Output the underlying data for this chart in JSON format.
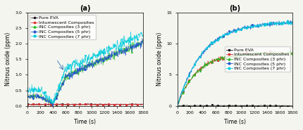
{
  "panel_a": {
    "title": "(a)",
    "xlabel": "Time (s)",
    "ylabel": "Nitrous oxide (ppm)",
    "ylim": [
      0,
      3.0
    ],
    "xlim": [
      0,
      1800
    ],
    "yticks": [
      0.0,
      0.5,
      1.0,
      1.5,
      2.0,
      2.5,
      3.0
    ],
    "xticks": [
      0,
      200,
      400,
      600,
      800,
      1000,
      1200,
      1400,
      1600,
      1800
    ],
    "series": {
      "Pure EVA": {
        "color": "#1a1a1a",
        "marker": "s",
        "style": "flat"
      },
      "Intumescent Composites": {
        "color": "#e03030",
        "marker": "s",
        "style": "flat"
      },
      "INC Composites (3 phr)": {
        "color": "#22bb22",
        "marker": "^",
        "style": "rise"
      },
      "INC Composites (5 phr)": {
        "color": "#2255cc",
        "marker": "o",
        "style": "rise"
      },
      "INC Composites (7 phr)": {
        "color": "#00ccdd",
        "marker": "o",
        "style": "rise_fast"
      }
    }
  },
  "panel_b": {
    "title": "(b)",
    "xlabel": "Time (s)",
    "ylabel": "Nitrous oxide (ppm)",
    "ylim": [
      0,
      15
    ],
    "xlim": [
      0,
      1800
    ],
    "yticks": [
      0,
      5,
      10,
      15
    ],
    "xticks": [
      0,
      200,
      400,
      600,
      800,
      1000,
      1200,
      1400,
      1600,
      1800
    ],
    "series": {
      "Pure EVA": {
        "color": "#1a1a1a",
        "marker": "s",
        "style": "flat"
      },
      "Intumescent Composites": {
        "color": "#e03030",
        "marker": "s",
        "style": "plateau8"
      },
      "INC Composites (3 phr)": {
        "color": "#22bb22",
        "marker": "^",
        "style": "plateau8"
      },
      "INC Composites (5 phr)": {
        "color": "#2255cc",
        "marker": "o",
        "style": "rise13"
      },
      "INC Composites (7 phr)": {
        "color": "#00ccdd",
        "marker": "o",
        "style": "rise13"
      }
    }
  },
  "background_color": "#f5f5f0",
  "legend_fontsize": 4.5,
  "tick_fontsize": 4.5,
  "label_fontsize": 5.5
}
